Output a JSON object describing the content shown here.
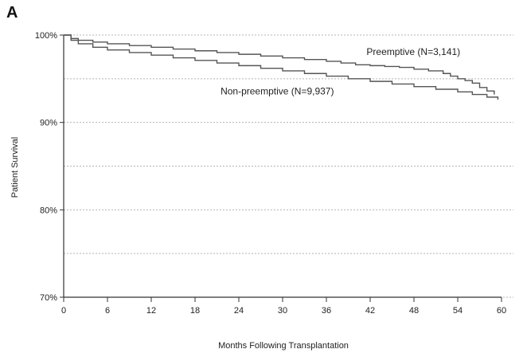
{
  "chart_data": {
    "type": "line",
    "panel_label": "A",
    "xlabel": "Months Following Transplantation",
    "ylabel": "Patient Survival",
    "xlim": [
      0,
      60
    ],
    "ylim": [
      70,
      100
    ],
    "x_ticks": [
      "0",
      "6",
      "12",
      "18",
      "24",
      "30",
      "36",
      "42",
      "48",
      "54",
      "60"
    ],
    "y_ticks": [
      "100%",
      "90%",
      "80%",
      "70%"
    ],
    "y_tick_values": [
      100,
      90,
      80,
      70
    ],
    "grid_y_values": [
      100,
      95,
      90,
      85,
      80,
      75,
      70
    ],
    "grid": "horizontal-dotted",
    "series": [
      {
        "name": "Preemptive (N=3,141)",
        "color": "#555555",
        "x": [
          0,
          1,
          2,
          4,
          6,
          9,
          12,
          15,
          18,
          21,
          24,
          27,
          30,
          33,
          36,
          38,
          40,
          42,
          44,
          46,
          48,
          50,
          52,
          53,
          54,
          55,
          56,
          57,
          58,
          59
        ],
        "y": [
          100,
          99.6,
          99.4,
          99.2,
          99.0,
          98.8,
          98.6,
          98.4,
          98.2,
          98.0,
          97.8,
          97.6,
          97.4,
          97.2,
          97.0,
          96.8,
          96.6,
          96.5,
          96.4,
          96.3,
          96.1,
          95.9,
          95.6,
          95.3,
          95.0,
          94.8,
          94.5,
          94.0,
          93.6,
          93.2
        ]
      },
      {
        "name": "Non-preemptive (N=9,937)",
        "color": "#555555",
        "x": [
          0,
          1,
          2,
          4,
          6,
          9,
          12,
          15,
          18,
          21,
          24,
          27,
          30,
          33,
          36,
          39,
          42,
          45,
          48,
          51,
          54,
          56,
          58,
          59.5
        ],
        "y": [
          100,
          99.4,
          99.0,
          98.6,
          98.3,
          98.0,
          97.7,
          97.4,
          97.1,
          96.8,
          96.5,
          96.2,
          95.9,
          95.6,
          95.3,
          95.0,
          94.7,
          94.4,
          94.1,
          93.8,
          93.5,
          93.2,
          92.9,
          92.6
        ]
      }
    ],
    "series_label_positions": [
      "above-right",
      "below-middle"
    ]
  }
}
